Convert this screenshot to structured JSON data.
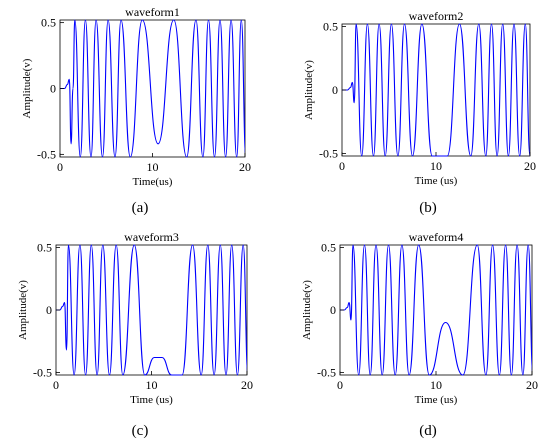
{
  "chart_data": [
    {
      "type": "line",
      "title": "waveform1",
      "xlabel": "Time(us)",
      "ylabel": "Amplitude(v)",
      "caption": "(a)",
      "xlim": [
        0,
        20
      ],
      "ylim": [
        -0.52,
        0.52
      ],
      "xticks": [
        "0",
        "10",
        "20"
      ],
      "yticks": [
        "-0.5",
        "0",
        "0.5"
      ],
      "line_color": "#0000ff",
      "series": [
        {
          "x": [
            0,
            0.5,
            0.8,
            1.0,
            1.2,
            1.4,
            1.6,
            2.2,
            2.75,
            3.35,
            3.9,
            4.6,
            5.2,
            5.95,
            6.6,
            7.6,
            8.9,
            10.6,
            12.3,
            13.7,
            14.7,
            15.45,
            16.05,
            16.7,
            17.3,
            17.9,
            18.5,
            19.1,
            19.6,
            20.1
          ],
          "y": [
            0,
            0,
            0.03,
            0.07,
            -0.42,
            0.0,
            0.52,
            -0.52,
            0.52,
            -0.52,
            0.52,
            -0.52,
            0.52,
            -0.52,
            0.52,
            -0.52,
            0.52,
            -0.42,
            0.52,
            -0.52,
            0.52,
            -0.52,
            0.52,
            -0.52,
            0.52,
            -0.52,
            0.52,
            -0.52,
            0.52,
            -0.52
          ]
        }
      ]
    },
    {
      "type": "line",
      "title": "waveform2",
      "xlabel": "Time (us)",
      "ylabel": "Amplitude(v)",
      "caption": "(b)",
      "xlim": [
        0,
        20
      ],
      "ylim": [
        -0.52,
        0.52
      ],
      "xticks": [
        "0",
        "10",
        "20"
      ],
      "yticks": [
        "-0.5",
        "0",
        "0.5"
      ],
      "line_color": "#0000ff",
      "series": [
        {
          "x": [
            0,
            0.6,
            0.9,
            1.1,
            1.3,
            1.5,
            2.1,
            2.7,
            3.35,
            3.95,
            4.6,
            5.25,
            5.95,
            6.65,
            7.5,
            8.5,
            9.6,
            10.2,
            11.2,
            12.5,
            13.7,
            14.55,
            15.3,
            15.9,
            16.5,
            17.1,
            17.7,
            18.3,
            18.9,
            19.5,
            20.0
          ],
          "y": [
            0,
            0,
            0.02,
            0.06,
            -0.1,
            0.52,
            -0.52,
            0.52,
            -0.52,
            0.52,
            -0.52,
            0.52,
            -0.52,
            0.52,
            -0.52,
            0.52,
            -0.52,
            -0.52,
            -0.52,
            0.52,
            -0.52,
            0.52,
            -0.52,
            0.52,
            -0.52,
            0.52,
            -0.52,
            0.52,
            -0.52,
            0.52,
            -0.52
          ]
        }
      ]
    },
    {
      "type": "line",
      "title": "waveform3",
      "xlabel": "Time (us)",
      "ylabel": "Amplitude(v)",
      "caption": "(c)",
      "xlim": [
        0,
        20
      ],
      "ylim": [
        -0.52,
        0.52
      ],
      "xticks": [
        "0",
        "10",
        "20"
      ],
      "yticks": [
        "-0.5",
        "0",
        "0.5"
      ],
      "line_color": "#0000ff",
      "series": [
        {
          "x": [
            0,
            0.4,
            0.7,
            0.9,
            1.1,
            1.3,
            1.9,
            2.5,
            3.1,
            3.7,
            4.3,
            4.9,
            5.6,
            6.3,
            7.0,
            8.2,
            9.3,
            10.3,
            11.1,
            12.1,
            13.2,
            14.3,
            15.2,
            15.9,
            16.55,
            17.2,
            17.8,
            18.4,
            19.0,
            19.6,
            20.1
          ],
          "y": [
            0,
            0,
            0.03,
            0.06,
            -0.32,
            0.52,
            -0.52,
            0.52,
            -0.52,
            0.52,
            -0.52,
            0.52,
            -0.52,
            0.52,
            -0.52,
            0.52,
            -0.52,
            -0.38,
            -0.38,
            -0.52,
            -0.52,
            0.52,
            -0.52,
            0.52,
            -0.52,
            0.52,
            -0.52,
            0.52,
            -0.52,
            0.52,
            -0.52
          ]
        }
      ]
    },
    {
      "type": "line",
      "title": "waveform4",
      "xlabel": "Time (us)",
      "ylabel": "Amplitude(v)",
      "caption": "(d)",
      "xlim": [
        0,
        20
      ],
      "ylim": [
        -0.52,
        0.52
      ],
      "xticks": [
        "0",
        "10",
        "20"
      ],
      "yticks": [
        "-0.5",
        "0",
        "0.5"
      ],
      "line_color": "#0000ff",
      "series": [
        {
          "x": [
            0,
            0.45,
            0.75,
            0.95,
            1.15,
            1.35,
            1.95,
            2.55,
            3.15,
            3.75,
            4.4,
            5.05,
            5.75,
            6.45,
            7.2,
            8.2,
            9.3,
            11.0,
            12.8,
            14.3,
            15.2,
            15.9,
            16.6,
            17.25,
            17.85,
            18.45,
            19.05,
            19.6,
            20.1
          ],
          "y": [
            0,
            0,
            0.02,
            0.06,
            -0.08,
            0.52,
            -0.52,
            0.52,
            -0.52,
            0.52,
            -0.52,
            0.52,
            -0.52,
            0.52,
            -0.52,
            0.52,
            -0.52,
            -0.1,
            -0.52,
            0.52,
            -0.52,
            0.52,
            -0.52,
            0.52,
            -0.52,
            0.52,
            -0.52,
            0.52,
            -0.52
          ]
        }
      ]
    }
  ]
}
